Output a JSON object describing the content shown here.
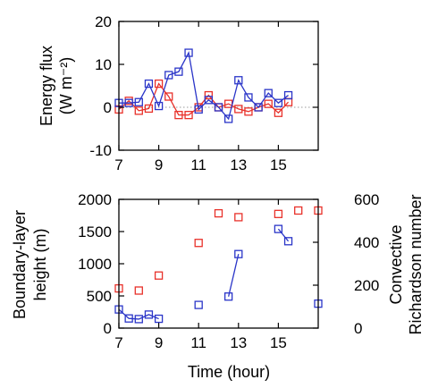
{
  "chart_data": [
    {
      "type": "line",
      "xlabel": "",
      "ylabel": "Energy flux (W m⁻²)",
      "ylabel_line1": "Energy flux",
      "ylabel_line2": "(W m⁻²)",
      "xlim": [
        7,
        17
      ],
      "ylim": [
        -10,
        20
      ],
      "xticks": [
        "7",
        "9",
        "11",
        "13",
        "15"
      ],
      "yticks": [
        "20",
        "10",
        "0",
        "-10"
      ],
      "zero_line": "dotted",
      "grid": false,
      "legend": "none",
      "series": [
        {
          "color": "#e8312a",
          "marker": "open-square",
          "x": [
            7.0,
            7.5,
            8.0,
            8.5,
            9.0,
            9.5,
            10.0,
            10.5,
            11.0,
            11.5,
            12.0,
            12.5,
            13.0,
            13.5,
            14.0,
            14.5,
            15.0,
            15.5
          ],
          "y": [
            -0.5,
            1.5,
            -0.8,
            -0.3,
            5.5,
            2.5,
            -1.8,
            -1.8,
            0.0,
            2.8,
            0.0,
            0.8,
            -0.4,
            -1.0,
            0.0,
            0.8,
            -1.3,
            1.2
          ]
        },
        {
          "color": "#2a35c8",
          "marker": "open-square",
          "x": [
            7.0,
            7.5,
            8.0,
            8.5,
            9.0,
            9.5,
            10.0,
            10.5,
            11.0,
            11.5,
            12.0,
            12.5,
            13.0,
            13.5,
            14.0,
            14.5,
            15.0,
            15.5
          ],
          "y": [
            1.0,
            1.0,
            1.2,
            5.5,
            0.3,
            7.5,
            8.3,
            12.7,
            -0.5,
            1.7,
            0.0,
            -2.7,
            6.3,
            2.3,
            0.0,
            3.3,
            1.0,
            2.8
          ]
        }
      ]
    },
    {
      "type": "scatter",
      "xlabel": "Time (hour)",
      "ylabel": "Boundary-layer height (m)",
      "ylabel_line1": "Boundary-layer",
      "ylabel_line2": "height (m)",
      "y2label": "Convective Richardson number",
      "y2label_line1": "Convective",
      "y2label_line2": "Richardson number",
      "xlim": [
        7,
        17
      ],
      "ylim": [
        0,
        2000
      ],
      "y2lim": [
        0,
        600
      ],
      "xticks": [
        "7",
        "9",
        "11",
        "13",
        "15"
      ],
      "yticks": [
        "2000",
        "1500",
        "1000",
        "500",
        "0"
      ],
      "y2ticks": [
        "600",
        "400",
        "200",
        "0"
      ],
      "grid": false,
      "legend": "none",
      "series": [
        {
          "color": "#e8312a",
          "marker": "open-square",
          "axis": "right",
          "connected": false,
          "x": [
            7,
            8,
            9,
            11,
            12,
            13,
            15,
            16,
            17
          ],
          "y": [
            185,
            175,
            245,
            397,
            535,
            517,
            532,
            548,
            548
          ]
        },
        {
          "color": "#2a35c8",
          "marker": "open-square",
          "axis": "left",
          "connected": true,
          "segments": [
            {
              "x": [
                7.0,
                7.5,
                8.0,
                8.5,
                9.0
              ],
              "y": [
                290,
                150,
                140,
                210,
                145
              ]
            },
            {
              "x": [
                11.0
              ],
              "y": [
                360
              ]
            },
            {
              "x": [
                12.5,
                13.0
              ],
              "y": [
                490,
                1150
              ]
            },
            {
              "x": [
                15.0,
                15.5
              ],
              "y": [
                1540,
                1350
              ]
            },
            {
              "x": [
                17.0
              ],
              "y": [
                380
              ]
            }
          ]
        }
      ]
    }
  ]
}
